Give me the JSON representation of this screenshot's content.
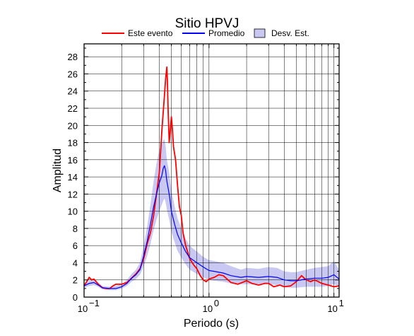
{
  "chart_data": {
    "type": "line",
    "title": "Sitio HPVJ",
    "xlabel": "Periodo (s)",
    "ylabel": "Amplitud",
    "xscale": "log",
    "xlim": [
      0.1,
      11
    ],
    "ylim": [
      0,
      29.5
    ],
    "x_ticks": [
      {
        "value": 0.1,
        "base": "10",
        "exp": "−1"
      },
      {
        "value": 1,
        "base": "10",
        "exp": "0"
      },
      {
        "value": 10,
        "base": "10",
        "exp": "1"
      }
    ],
    "y_ticks": [
      0,
      2,
      4,
      6,
      8,
      10,
      12,
      14,
      16,
      18,
      20,
      22,
      24,
      26,
      28
    ],
    "grid": true,
    "legend_position": "top",
    "legend": [
      {
        "label": "Este evento",
        "kind": "line",
        "color": "#ff0000"
      },
      {
        "label": "Promedio",
        "kind": "line",
        "color": "#0000ff"
      },
      {
        "label": "Desv. Est.",
        "kind": "box",
        "color": "#c8c8f2"
      }
    ],
    "series": [
      {
        "name": "Este evento",
        "color": "#ff0000",
        "points": [
          [
            0.1,
            1.3
          ],
          [
            0.105,
            1.8
          ],
          [
            0.11,
            2.3
          ],
          [
            0.115,
            2.0
          ],
          [
            0.12,
            2.1
          ],
          [
            0.13,
            1.5
          ],
          [
            0.14,
            1.1
          ],
          [
            0.15,
            1.0
          ],
          [
            0.16,
            1.0
          ],
          [
            0.17,
            1.3
          ],
          [
            0.18,
            1.5
          ],
          [
            0.2,
            1.5
          ],
          [
            0.22,
            1.7
          ],
          [
            0.24,
            2.2
          ],
          [
            0.26,
            2.7
          ],
          [
            0.28,
            3.3
          ],
          [
            0.3,
            4.5
          ],
          [
            0.32,
            6.2
          ],
          [
            0.34,
            7.5
          ],
          [
            0.36,
            9.5
          ],
          [
            0.38,
            12.0
          ],
          [
            0.4,
            14.5
          ],
          [
            0.41,
            17.0
          ],
          [
            0.42,
            19.5
          ],
          [
            0.43,
            21.5
          ],
          [
            0.44,
            23.5
          ],
          [
            0.45,
            25.5
          ],
          [
            0.46,
            26.8
          ],
          [
            0.465,
            25.0
          ],
          [
            0.47,
            22.0
          ],
          [
            0.48,
            18.0
          ],
          [
            0.49,
            19.5
          ],
          [
            0.5,
            21.0
          ],
          [
            0.51,
            19.5
          ],
          [
            0.52,
            17.5
          ],
          [
            0.54,
            16.0
          ],
          [
            0.56,
            13.0
          ],
          [
            0.58,
            10.5
          ],
          [
            0.6,
            9.5
          ],
          [
            0.62,
            7.5
          ],
          [
            0.65,
            6.0
          ],
          [
            0.7,
            4.5
          ],
          [
            0.75,
            3.8
          ],
          [
            0.8,
            3.3
          ],
          [
            0.85,
            2.5
          ],
          [
            0.9,
            2.0
          ],
          [
            0.95,
            1.8
          ],
          [
            1.0,
            2.1
          ],
          [
            1.1,
            2.3
          ],
          [
            1.2,
            2.6
          ],
          [
            1.3,
            2.5
          ],
          [
            1.5,
            1.7
          ],
          [
            1.7,
            1.5
          ],
          [
            2.0,
            1.9
          ],
          [
            2.2,
            1.6
          ],
          [
            2.5,
            1.4
          ],
          [
            2.8,
            1.6
          ],
          [
            3.0,
            1.6
          ],
          [
            3.3,
            1.2
          ],
          [
            3.7,
            1.4
          ],
          [
            4.0,
            1.2
          ],
          [
            4.5,
            1.3
          ],
          [
            5.0,
            1.8
          ],
          [
            5.5,
            2.5
          ],
          [
            6.0,
            2.0
          ],
          [
            6.5,
            1.8
          ],
          [
            7.0,
            2.0
          ],
          [
            8.0,
            1.6
          ],
          [
            9.0,
            1.4
          ],
          [
            10.0,
            1.2
          ],
          [
            11.0,
            1.3
          ]
        ]
      },
      {
        "name": "Promedio",
        "color": "#0000ff",
        "points": [
          [
            0.1,
            1.3
          ],
          [
            0.11,
            1.6
          ],
          [
            0.12,
            1.7
          ],
          [
            0.13,
            1.4
          ],
          [
            0.14,
            1.1
          ],
          [
            0.16,
            1.0
          ],
          [
            0.18,
            1.0
          ],
          [
            0.2,
            1.2
          ],
          [
            0.22,
            1.6
          ],
          [
            0.24,
            2.2
          ],
          [
            0.26,
            2.6
          ],
          [
            0.28,
            3.2
          ],
          [
            0.3,
            4.8
          ],
          [
            0.32,
            6.5
          ],
          [
            0.34,
            8.5
          ],
          [
            0.36,
            10.5
          ],
          [
            0.38,
            12.0
          ],
          [
            0.4,
            13.3
          ],
          [
            0.42,
            14.2
          ],
          [
            0.43,
            15.0
          ],
          [
            0.44,
            15.3
          ],
          [
            0.45,
            14.7
          ],
          [
            0.46,
            13.5
          ],
          [
            0.48,
            12.0
          ],
          [
            0.5,
            10.0
          ],
          [
            0.53,
            8.5
          ],
          [
            0.56,
            7.3
          ],
          [
            0.6,
            6.3
          ],
          [
            0.65,
            5.3
          ],
          [
            0.7,
            4.6
          ],
          [
            0.8,
            4.0
          ],
          [
            0.9,
            3.5
          ],
          [
            1.0,
            3.1
          ],
          [
            1.1,
            3.0
          ],
          [
            1.3,
            2.8
          ],
          [
            1.5,
            2.5
          ],
          [
            1.8,
            2.3
          ],
          [
            2.0,
            2.4
          ],
          [
            2.5,
            2.3
          ],
          [
            3.0,
            2.4
          ],
          [
            3.5,
            2.3
          ],
          [
            4.0,
            2.0
          ],
          [
            4.5,
            1.9
          ],
          [
            5.0,
            1.9
          ],
          [
            6.0,
            2.1
          ],
          [
            7.0,
            2.2
          ],
          [
            8.0,
            2.2
          ],
          [
            9.0,
            2.3
          ],
          [
            10.0,
            2.6
          ],
          [
            11.0,
            2.1
          ]
        ]
      },
      {
        "name": "Desv. Est.",
        "kind": "band",
        "color": "#c8c8f2",
        "points": [
          [
            0.1,
            1.1,
            1.6
          ],
          [
            0.11,
            1.3,
            1.9
          ],
          [
            0.12,
            1.4,
            2.0
          ],
          [
            0.13,
            1.2,
            1.7
          ],
          [
            0.14,
            0.9,
            1.3
          ],
          [
            0.16,
            0.8,
            1.2
          ],
          [
            0.18,
            0.8,
            1.3
          ],
          [
            0.2,
            1.0,
            1.5
          ],
          [
            0.22,
            1.3,
            2.0
          ],
          [
            0.24,
            1.8,
            2.7
          ],
          [
            0.26,
            2.1,
            3.2
          ],
          [
            0.28,
            2.6,
            4.0
          ],
          [
            0.3,
            3.6,
            6.0
          ],
          [
            0.32,
            4.8,
            8.2
          ],
          [
            0.34,
            6.2,
            10.8
          ],
          [
            0.36,
            7.8,
            13.5
          ],
          [
            0.38,
            9.0,
            15.5
          ],
          [
            0.4,
            10.0,
            17.2
          ],
          [
            0.42,
            10.8,
            17.8
          ],
          [
            0.43,
            11.2,
            18.2
          ],
          [
            0.44,
            11.5,
            18.4
          ],
          [
            0.45,
            11.0,
            17.5
          ],
          [
            0.46,
            10.2,
            16.0
          ],
          [
            0.48,
            9.0,
            14.5
          ],
          [
            0.5,
            7.6,
            12.4
          ],
          [
            0.53,
            6.4,
            10.6
          ],
          [
            0.56,
            5.4,
            9.2
          ],
          [
            0.6,
            4.6,
            8.0
          ],
          [
            0.65,
            3.8,
            6.8
          ],
          [
            0.7,
            3.2,
            6.0
          ],
          [
            0.8,
            2.7,
            5.3
          ],
          [
            0.9,
            2.3,
            4.7
          ],
          [
            1.0,
            2.0,
            4.3
          ],
          [
            1.1,
            1.9,
            4.2
          ],
          [
            1.3,
            1.8,
            4.0
          ],
          [
            1.5,
            1.6,
            3.6
          ],
          [
            1.8,
            1.5,
            3.2
          ],
          [
            2.0,
            1.5,
            3.4
          ],
          [
            2.5,
            1.5,
            3.3
          ],
          [
            3.0,
            1.5,
            3.5
          ],
          [
            3.5,
            1.4,
            3.4
          ],
          [
            4.0,
            1.2,
            3.0
          ],
          [
            4.5,
            1.1,
            2.9
          ],
          [
            5.0,
            1.1,
            2.9
          ],
          [
            6.0,
            1.2,
            3.2
          ],
          [
            7.0,
            1.2,
            3.4
          ],
          [
            8.0,
            1.2,
            3.5
          ],
          [
            9.0,
            1.3,
            3.6
          ],
          [
            10.0,
            1.5,
            4.2
          ],
          [
            11.0,
            1.2,
            3.2
          ]
        ]
      }
    ]
  }
}
